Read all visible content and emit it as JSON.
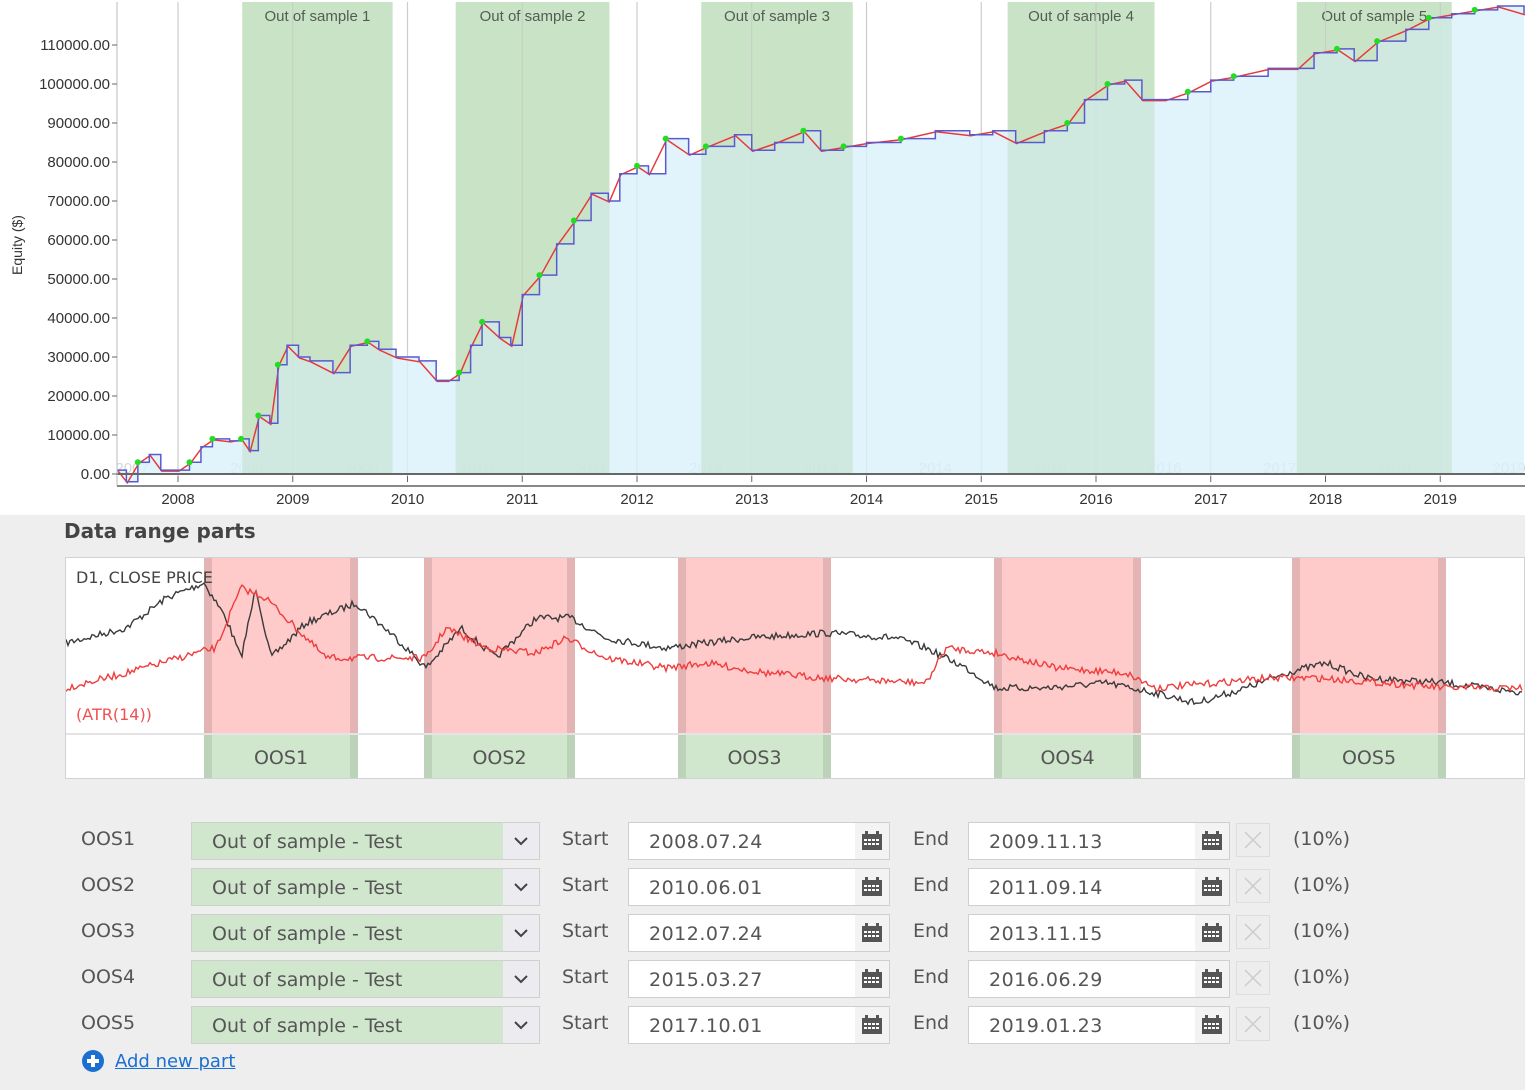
{
  "equity_chart": {
    "ylabel": "Equity ($)",
    "y_ticks": [
      "0.00",
      "10000.00",
      "20000.00",
      "30000.00",
      "40000.00",
      "50000.00",
      "60000.00",
      "70000.00",
      "80000.00",
      "90000.00",
      "100000.00",
      "110000.00"
    ],
    "x_ticks": [
      "2008",
      "2009",
      "2010",
      "2011",
      "2012",
      "2013",
      "2014",
      "2015",
      "2016",
      "2017",
      "2018",
      "2019"
    ],
    "watermark_years": [
      "2007",
      "2008",
      "2009",
      "2010",
      "2011",
      "2012",
      "2013",
      "2014",
      "2015",
      "2016",
      "2017",
      "2018",
      "2019"
    ],
    "bands": [
      {
        "label": "Out of sample 1",
        "start": 2008.56,
        "end": 2009.87
      },
      {
        "label": "Out of sample 2",
        "start": 2010.42,
        "end": 2011.76
      },
      {
        "label": "Out of sample 3",
        "start": 2012.56,
        "end": 2013.88
      },
      {
        "label": "Out of sample 4",
        "start": 2015.23,
        "end": 2016.51
      },
      {
        "label": "Out of sample 5",
        "start": 2017.75,
        "end": 2019.1
      }
    ],
    "colors": {
      "band": "#b5d9b0",
      "fill": "#d9f1fb",
      "line_blue": "#5a5ad0",
      "line_red": "#e83a3a",
      "marker": "#22dd22"
    },
    "series": [
      [
        2007.47,
        1000
      ],
      [
        2007.55,
        -2000
      ],
      [
        2007.65,
        3000
      ],
      [
        2007.75,
        5000
      ],
      [
        2007.85,
        1000
      ],
      [
        2008.0,
        1000
      ],
      [
        2008.1,
        3000
      ],
      [
        2008.2,
        7000
      ],
      [
        2008.3,
        9000
      ],
      [
        2008.45,
        8500
      ],
      [
        2008.55,
        9000
      ],
      [
        2008.62,
        6000
      ],
      [
        2008.7,
        15000
      ],
      [
        2008.8,
        13000
      ],
      [
        2008.87,
        28000
      ],
      [
        2008.95,
        33000
      ],
      [
        2009.05,
        30000
      ],
      [
        2009.15,
        29000
      ],
      [
        2009.35,
        26000
      ],
      [
        2009.5,
        33000
      ],
      [
        2009.65,
        34000
      ],
      [
        2009.75,
        32000
      ],
      [
        2009.9,
        30000
      ],
      [
        2010.1,
        29000
      ],
      [
        2010.25,
        24000
      ],
      [
        2010.35,
        24000
      ],
      [
        2010.45,
        26000
      ],
      [
        2010.55,
        33000
      ],
      [
        2010.65,
        39000
      ],
      [
        2010.8,
        35000
      ],
      [
        2010.9,
        33000
      ],
      [
        2011.0,
        46000
      ],
      [
        2011.15,
        51000
      ],
      [
        2011.3,
        59000
      ],
      [
        2011.45,
        65000
      ],
      [
        2011.6,
        72000
      ],
      [
        2011.75,
        70000
      ],
      [
        2011.85,
        77000
      ],
      [
        2012.0,
        79000
      ],
      [
        2012.1,
        77000
      ],
      [
        2012.25,
        86000
      ],
      [
        2012.45,
        82000
      ],
      [
        2012.6,
        84000
      ],
      [
        2012.85,
        87000
      ],
      [
        2013.0,
        83000
      ],
      [
        2013.2,
        85000
      ],
      [
        2013.45,
        88000
      ],
      [
        2013.6,
        83000
      ],
      [
        2013.8,
        84000
      ],
      [
        2014.0,
        85000
      ],
      [
        2014.3,
        86000
      ],
      [
        2014.6,
        88000
      ],
      [
        2014.9,
        87000
      ],
      [
        2015.1,
        88000
      ],
      [
        2015.3,
        85000
      ],
      [
        2015.55,
        88000
      ],
      [
        2015.75,
        90000
      ],
      [
        2015.9,
        96000
      ],
      [
        2016.1,
        100000
      ],
      [
        2016.25,
        101000
      ],
      [
        2016.4,
        96000
      ],
      [
        2016.6,
        96000
      ],
      [
        2016.8,
        98000
      ],
      [
        2017.0,
        101000
      ],
      [
        2017.2,
        102000
      ],
      [
        2017.5,
        104000
      ],
      [
        2017.75,
        104000
      ],
      [
        2017.9,
        108000
      ],
      [
        2018.1,
        109000
      ],
      [
        2018.25,
        106000
      ],
      [
        2018.45,
        111000
      ],
      [
        2018.7,
        114000
      ],
      [
        2018.9,
        117000
      ],
      [
        2019.1,
        118000
      ],
      [
        2019.3,
        119000
      ],
      [
        2019.5,
        120000
      ],
      [
        2019.73,
        118000
      ]
    ]
  },
  "section_title": "Data range parts",
  "parts_chart": {
    "price_label": "D1, CLOSE PRICE",
    "indicator_label": "(ATR(14))",
    "parts": [
      "OOS1",
      "OOS2",
      "OOS3",
      "OOS4",
      "OOS5"
    ]
  },
  "rows": [
    {
      "name": "OOS1",
      "type": "Out of sample - Test",
      "start_label": "Start",
      "start": "2008.07.24",
      "end_label": "End",
      "end": "2009.11.13",
      "pct": "(10%)"
    },
    {
      "name": "OOS2",
      "type": "Out of sample - Test",
      "start_label": "Start",
      "start": "2010.06.01",
      "end_label": "End",
      "end": "2011.09.14",
      "pct": "(10%)"
    },
    {
      "name": "OOS3",
      "type": "Out of sample - Test",
      "start_label": "Start",
      "start": "2012.07.24",
      "end_label": "End",
      "end": "2013.11.15",
      "pct": "(10%)"
    },
    {
      "name": "OOS4",
      "type": "Out of sample - Test",
      "start_label": "Start",
      "start": "2015.03.27",
      "end_label": "End",
      "end": "2016.06.29",
      "pct": "(10%)"
    },
    {
      "name": "OOS5",
      "type": "Out of sample - Test",
      "start_label": "Start",
      "start": "2017.10.01",
      "end_label": "End",
      "end": "2019.01.23",
      "pct": "(10%)"
    }
  ],
  "add_part_label": "Add new part"
}
